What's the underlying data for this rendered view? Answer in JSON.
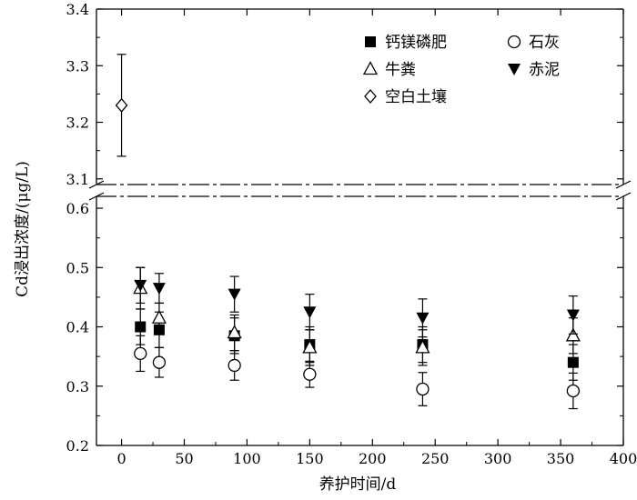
{
  "chart_data": {
    "type": "scatter",
    "xlabel": "养护时间/d",
    "ylabel": "Cd浸出浓度/(μg/L)",
    "xlim": [
      -20,
      400
    ],
    "x_ticks": [
      0,
      50,
      100,
      150,
      200,
      250,
      300,
      350,
      400
    ],
    "y_axis_break": true,
    "y_lower_range": [
      0.2,
      0.62
    ],
    "y_upper_range": [
      3.09,
      3.4
    ],
    "y_ticks_lower": [
      0.2,
      0.3,
      0.4,
      0.5,
      0.6
    ],
    "y_ticks_upper": [
      3.1,
      3.2,
      3.3,
      3.4
    ],
    "grid": false,
    "legend_placement": "top-right",
    "series": [
      {
        "name": "钙镁磷肥",
        "marker": "filled-square",
        "x": [
          15,
          30,
          90,
          150,
          240,
          360
        ],
        "y": [
          0.4,
          0.395,
          0.385,
          0.37,
          0.37,
          0.34
        ],
        "err": [
          0.03,
          0.03,
          0.03,
          0.03,
          0.03,
          0.03
        ]
      },
      {
        "name": "石灰",
        "marker": "open-circle",
        "x": [
          15,
          30,
          90,
          150,
          240,
          360
        ],
        "y": [
          0.355,
          0.34,
          0.335,
          0.32,
          0.295,
          0.292
        ],
        "err": [
          0.03,
          0.025,
          0.025,
          0.022,
          0.028,
          0.03
        ]
      },
      {
        "name": "牛粪",
        "marker": "open-triangle-up",
        "x": [
          15,
          30,
          90,
          150,
          240,
          360
        ],
        "y": [
          0.465,
          0.415,
          0.39,
          0.365,
          0.365,
          0.385
        ],
        "err": [
          0.035,
          0.025,
          0.03,
          0.03,
          0.03,
          0.03
        ]
      },
      {
        "name": "赤泥",
        "marker": "filled-triangle-down",
        "x": [
          15,
          30,
          90,
          150,
          240,
          360
        ],
        "y": [
          0.47,
          0.465,
          0.455,
          0.425,
          0.415,
          0.42
        ],
        "err": [
          0.03,
          0.025,
          0.03,
          0.03,
          0.032,
          0.032
        ]
      },
      {
        "name": "空白土壤",
        "marker": "open-diamond",
        "x": [
          0
        ],
        "y": [
          3.23
        ],
        "err": [
          0.09
        ]
      }
    ]
  }
}
